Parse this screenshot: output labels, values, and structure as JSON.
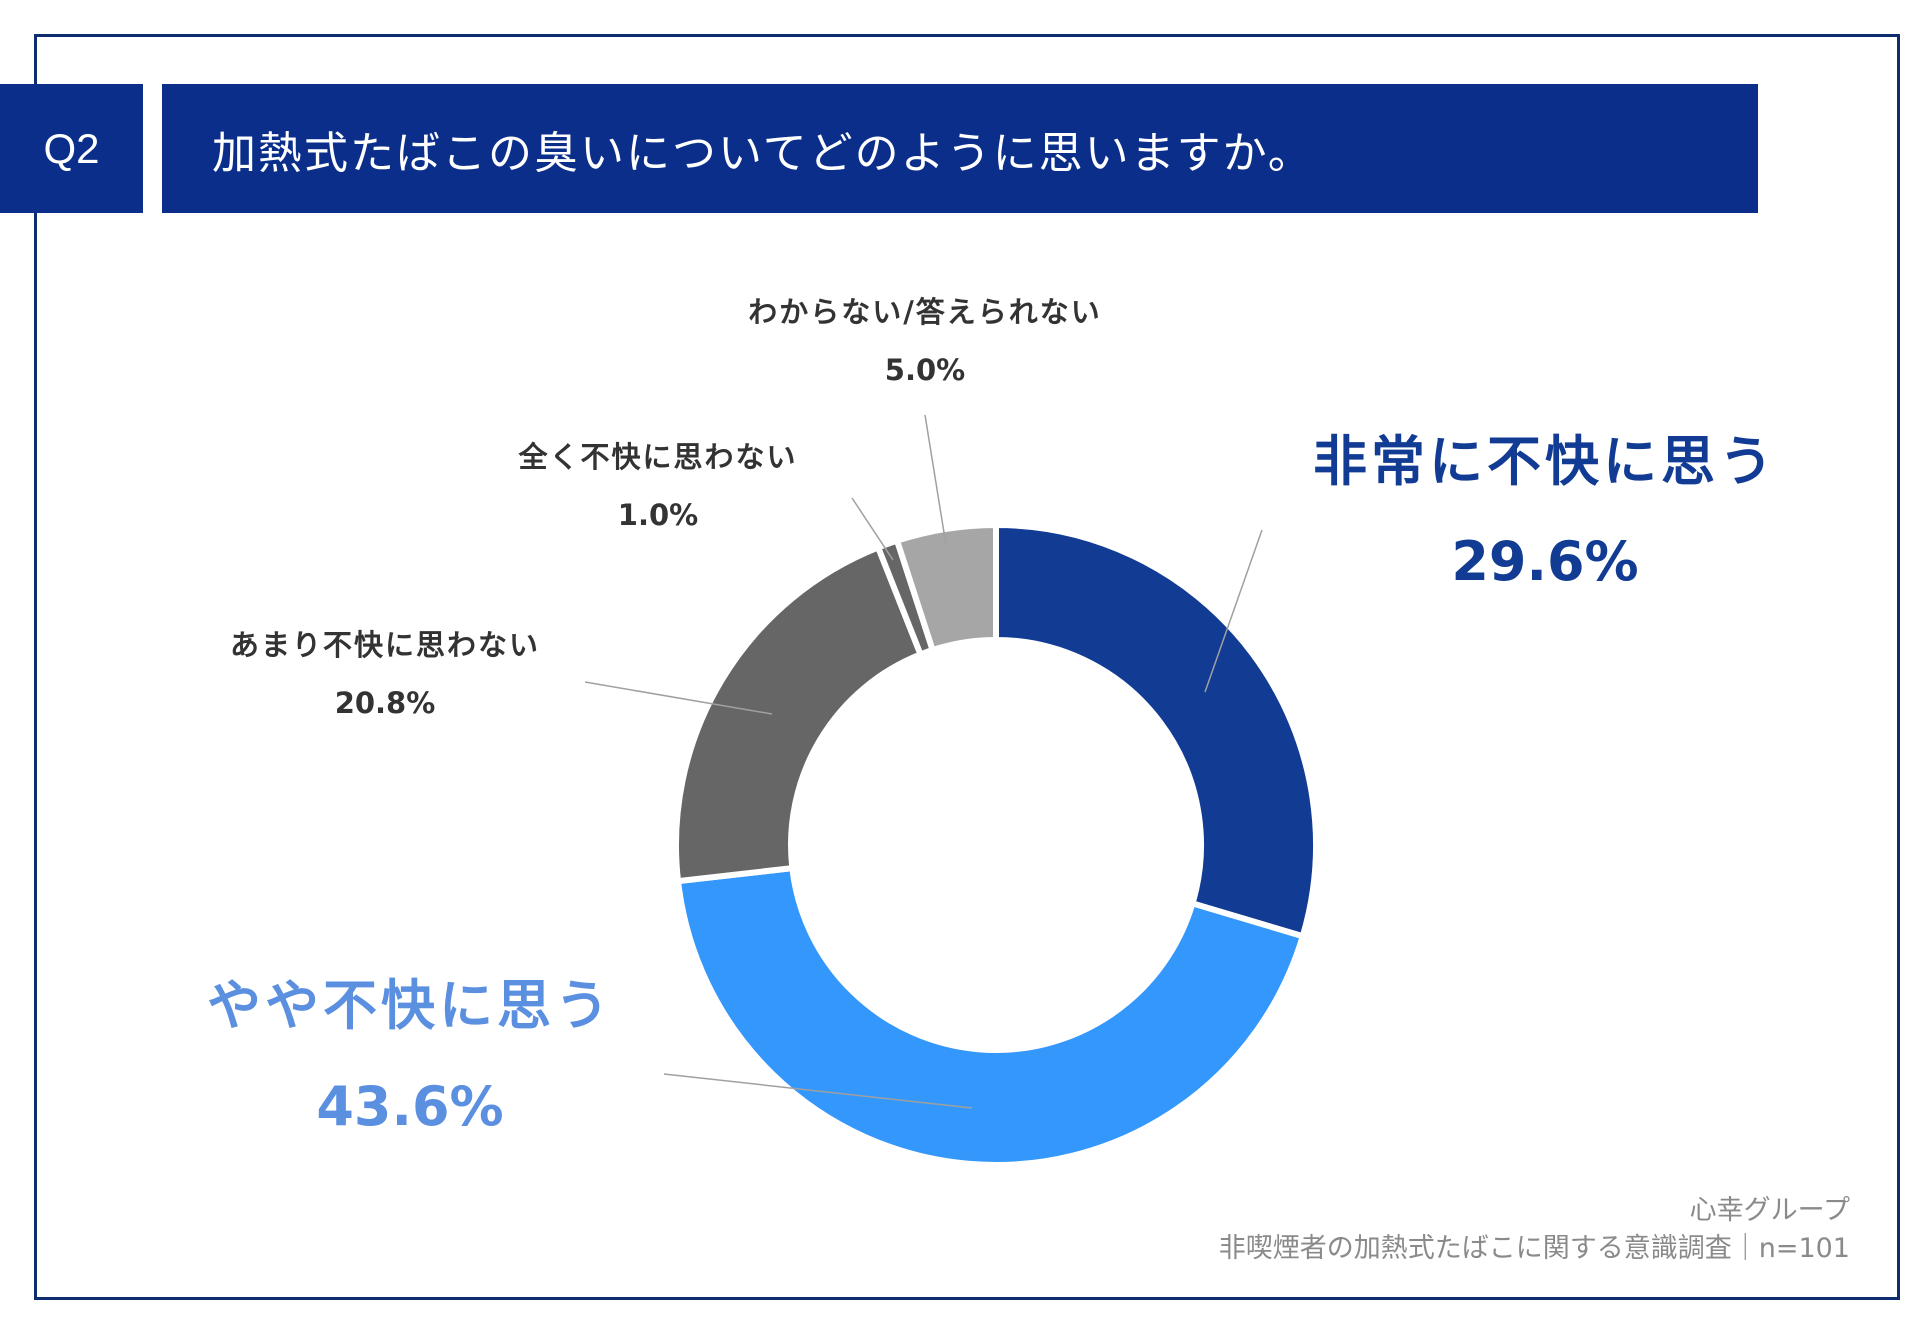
{
  "header": {
    "question_no": "Q2",
    "question": "加熱式たばこの臭いについてどのように思いますか。"
  },
  "chart_data": {
    "type": "pie",
    "style": "donut",
    "slices": [
      {
        "label": "非常に不快に思う",
        "value": 29.6,
        "value_label": "29.6%",
        "color": "#123c94",
        "label_color": "#123c94",
        "emphasis": true
      },
      {
        "label": "やや不快に思う",
        "value": 43.6,
        "value_label": "43.6%",
        "color": "#3497fb",
        "label_color": "#5b8fe0",
        "emphasis": true
      },
      {
        "label": "あまり不快に思わない",
        "value": 20.8,
        "value_label": "20.8%",
        "color": "#666666",
        "label_color": "#333333",
        "emphasis": false
      },
      {
        "label": "全く不快に思わない",
        "value": 1.0,
        "value_label": "1.0%",
        "color": "#666666",
        "label_color": "#333333",
        "emphasis": false
      },
      {
        "label": "わからない/答えられない",
        "value": 5.0,
        "value_label": "5.0%",
        "color": "#a6a6a6",
        "label_color": "#333333",
        "emphasis": false
      }
    ]
  },
  "footer": {
    "source": "心幸グループ",
    "survey": "非喫煙者の加熱式たばこに関する意識調査｜n=101"
  }
}
